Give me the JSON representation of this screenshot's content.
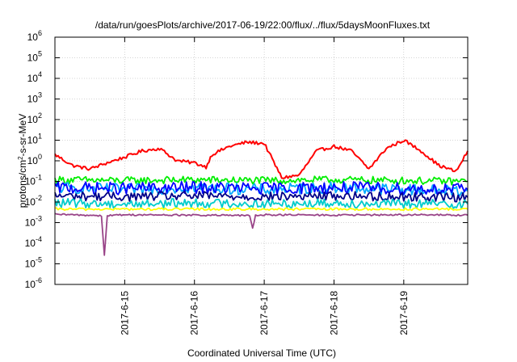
{
  "chart_data": {
    "type": "line",
    "title": "/data/run/goesPlots/archive/2017-06-19/22:00/flux/../flux/5daysMoonFluxes.txt",
    "xlabel": "Coordinated Universal Time (UTC)",
    "ylabel": "protons/cm²-s-sr-MeV",
    "y_scale": "log",
    "ylim": [
      1e-06,
      1000000.0
    ],
    "y_ticks": [
      {
        "value": 1e-06,
        "base": "10",
        "exp": "-6"
      },
      {
        "value": 1e-05,
        "base": "10",
        "exp": "-5"
      },
      {
        "value": 0.0001,
        "base": "10",
        "exp": "-4"
      },
      {
        "value": 0.001,
        "base": "10",
        "exp": "-3"
      },
      {
        "value": 0.01,
        "base": "10",
        "exp": "-2"
      },
      {
        "value": 0.1,
        "base": "10",
        "exp": "-1"
      },
      {
        "value": 1,
        "base": "10",
        "exp": "0"
      },
      {
        "value": 10.0,
        "base": "10",
        "exp": "1"
      },
      {
        "value": 100.0,
        "base": "10",
        "exp": "2"
      },
      {
        "value": 1000.0,
        "base": "10",
        "exp": "3"
      },
      {
        "value": 10000.0,
        "base": "10",
        "exp": "4"
      },
      {
        "value": 100000.0,
        "base": "10",
        "exp": "5"
      },
      {
        "value": 1000000.0,
        "base": "10",
        "exp": "6"
      }
    ],
    "xlim": [
      "2017-06-14 00:00",
      "2017-06-19 22:00"
    ],
    "x_ticks": [
      "2017-6-15",
      "2017-6-16",
      "2017-6-17",
      "2017-6-18",
      "2017-6-19"
    ],
    "grid": true,
    "series": [
      {
        "color": "#ff0000",
        "x": [
          "2017-06-14 00:00",
          "2017-06-14 06:00",
          "2017-06-14 12:00",
          "2017-06-14 18:00",
          "2017-06-15 00:00",
          "2017-06-15 06:00",
          "2017-06-15 12:00",
          "2017-06-15 18:00",
          "2017-06-16 00:00",
          "2017-06-16 04:00",
          "2017-06-16 06:00",
          "2017-06-16 12:00",
          "2017-06-16 18:00",
          "2017-06-17 00:00",
          "2017-06-17 06:00",
          "2017-06-17 12:00",
          "2017-06-17 18:00",
          "2017-06-18 00:00",
          "2017-06-18 06:00",
          "2017-06-18 12:00",
          "2017-06-18 18:00",
          "2017-06-19 00:00",
          "2017-06-19 06:00",
          "2017-06-19 12:00",
          "2017-06-19 18:00",
          "2017-06-19 22:00"
        ],
        "y": [
          2.0,
          0.6,
          0.4,
          0.8,
          1.5,
          3.0,
          4.0,
          1.0,
          0.8,
          0.5,
          2.0,
          5.0,
          8.0,
          7.0,
          0.15,
          0.2,
          3.0,
          5.0,
          3.0,
          0.4,
          4.0,
          10.0,
          3.0,
          0.6,
          0.3,
          3.0
        ]
      },
      {
        "color": "#00ee00",
        "x": [
          "2017-06-14 00:00",
          "2017-06-15 00:00",
          "2017-06-16 00:00",
          "2017-06-17 00:00",
          "2017-06-18 00:00",
          "2017-06-19 00:00",
          "2017-06-19 22:00"
        ],
        "y": [
          0.12,
          0.11,
          0.12,
          0.11,
          0.12,
          0.11,
          0.1
        ]
      },
      {
        "color": "#00aaff",
        "x": [
          "2017-06-14 00:00",
          "2017-06-15 00:00",
          "2017-06-16 00:00",
          "2017-06-17 00:00",
          "2017-06-18 00:00",
          "2017-06-19 00:00",
          "2017-06-19 22:00"
        ],
        "y": [
          0.05,
          0.04,
          0.05,
          0.04,
          0.05,
          0.04,
          0.035
        ]
      },
      {
        "color": "#0000ff",
        "x": [
          "2017-06-14 00:00",
          "2017-06-15 00:00",
          "2017-06-16 00:00",
          "2017-06-17 00:00",
          "2017-06-18 00:00",
          "2017-06-19 00:00",
          "2017-06-19 22:00"
        ],
        "y": [
          0.05,
          0.045,
          0.05,
          0.045,
          0.05,
          0.045,
          0.04
        ]
      },
      {
        "color": "#000088",
        "x": [
          "2017-06-14 00:00",
          "2017-06-15 00:00",
          "2017-06-16 00:00",
          "2017-06-17 00:00",
          "2017-06-18 00:00",
          "2017-06-19 00:00",
          "2017-06-19 22:00"
        ],
        "y": [
          0.02,
          0.018,
          0.02,
          0.018,
          0.02,
          0.018,
          0.017
        ]
      },
      {
        "color": "#00cccc",
        "x": [
          "2017-06-14 00:00",
          "2017-06-15 00:00",
          "2017-06-16 00:00",
          "2017-06-17 00:00",
          "2017-06-18 00:00",
          "2017-06-19 00:00",
          "2017-06-19 22:00"
        ],
        "y": [
          0.009,
          0.008,
          0.009,
          0.008,
          0.009,
          0.008,
          0.008
        ]
      },
      {
        "color": "#ffff00",
        "x": [
          "2017-06-14 00:00",
          "2017-06-15 00:00",
          "2017-06-16 00:00",
          "2017-06-17 00:00",
          "2017-06-18 00:00",
          "2017-06-19 00:00",
          "2017-06-19 22:00"
        ],
        "y": [
          0.0045,
          0.0045,
          0.0045,
          0.0045,
          0.0045,
          0.0045,
          0.0045
        ]
      },
      {
        "color": "#994488",
        "x": [
          "2017-06-14 00:00",
          "2017-06-14 16:00",
          "2017-06-14 17:00",
          "2017-06-14 18:00",
          "2017-06-15 00:00",
          "2017-06-16 00:00",
          "2017-06-16 19:00",
          "2017-06-16 20:00",
          "2017-06-16 21:00",
          "2017-06-17 00:00",
          "2017-06-18 00:00",
          "2017-06-19 00:00",
          "2017-06-19 22:00"
        ],
        "y": [
          0.0025,
          0.0022,
          2.5e-05,
          0.0022,
          0.0024,
          0.0023,
          0.0022,
          0.0005,
          0.0022,
          0.0024,
          0.0023,
          0.0024,
          0.0023
        ]
      }
    ]
  }
}
